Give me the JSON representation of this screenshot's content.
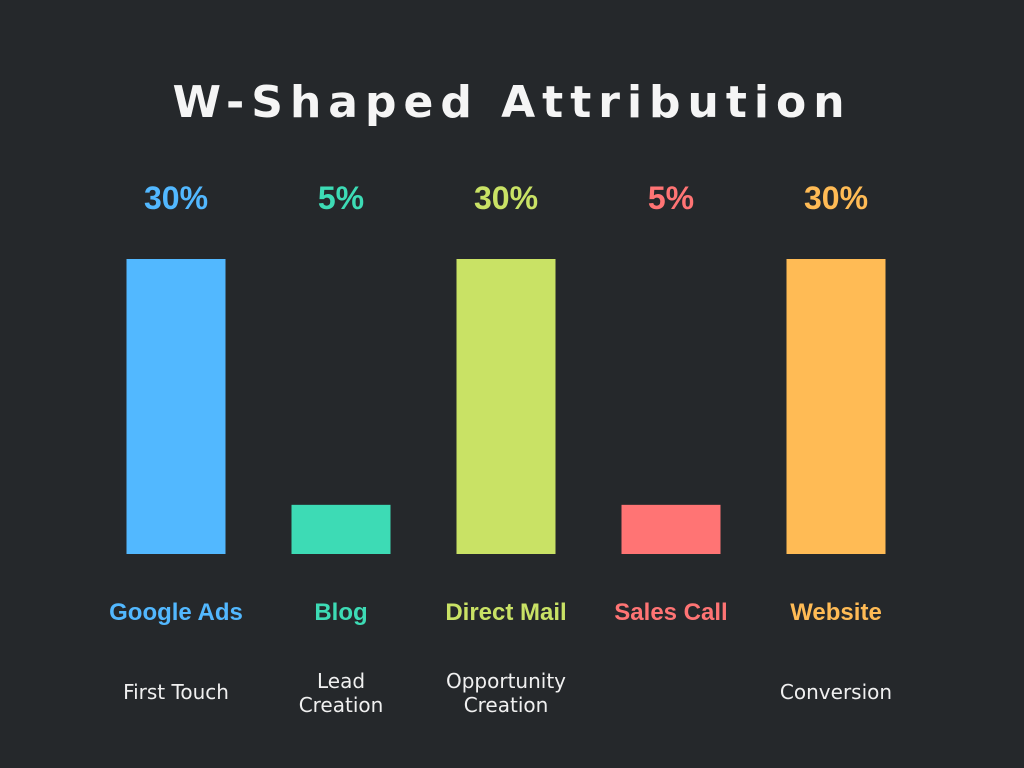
{
  "chart_data": {
    "type": "bar",
    "title": "W-Shaped Attribution",
    "categories": [
      "Google Ads",
      "Blog",
      "Direct Mail",
      "Sales Call",
      "Website"
    ],
    "values": [
      30,
      5,
      30,
      5,
      30
    ],
    "value_labels": [
      "30%",
      "5%",
      "30%",
      "5%",
      "30%"
    ],
    "stages": [
      [
        "First Touch"
      ],
      [
        "Lead",
        "Creation"
      ],
      [
        "Opportunity",
        "Creation"
      ],
      [],
      [
        "Conversion"
      ]
    ],
    "colors": [
      "#52b8ff",
      "#3ddbb5",
      "#c9e265",
      "#ff7474",
      "#ffbb55"
    ],
    "ylim": [
      0,
      30
    ],
    "grid": false,
    "legend": "none"
  }
}
